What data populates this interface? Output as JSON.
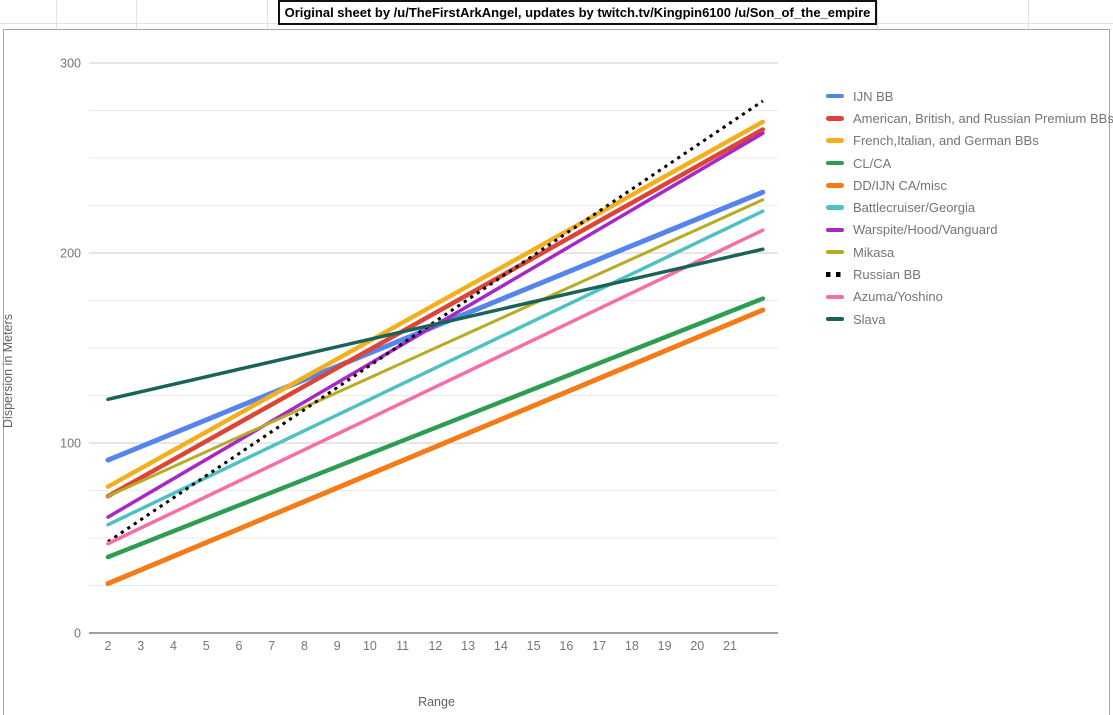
{
  "spreadsheet": {
    "title_cell": "Original sheet by /u/TheFirstArkAngel, updates by twitch.tv/Kingpin6100 /u/Son_of_the_empire"
  },
  "colors": {
    "grid_major": "#cccccc",
    "grid_minor": "#ebebeb",
    "axis_baseline": "#424242",
    "tick_label": "#757575",
    "axis_title": "#616161",
    "cell_border": "#e1e1e1",
    "chart_border": "#a6a6a6"
  },
  "chart_data": {
    "type": "line",
    "title": "",
    "x_axis": {
      "label": "Range",
      "ticks": [
        2,
        3,
        4,
        5,
        6,
        7,
        8,
        9,
        10,
        11,
        12,
        13,
        14,
        15,
        16,
        17,
        18,
        19,
        20,
        21
      ],
      "min": 2,
      "max": 22
    },
    "y_axis": {
      "label": "Dispersion in Meters",
      "ticks": [
        0,
        100,
        200,
        300
      ],
      "min": 0,
      "max": 300,
      "minor_gridline_step": 25
    },
    "grid": "horizontal-only",
    "legend_position": "right",
    "series": [
      {
        "name": "IJN BB",
        "color": "#5585ec",
        "style": "solid",
        "width": 5,
        "points": [
          [
            2,
            91
          ],
          [
            22,
            232
          ]
        ]
      },
      {
        "name": "American, British, and Russian Premium BBs",
        "color": "#db4437",
        "style": "solid",
        "width": 4.5,
        "points": [
          [
            2,
            72
          ],
          [
            22,
            265
          ]
        ]
      },
      {
        "name": "French,Italian, and German BBs",
        "color": "#f2b01e",
        "style": "solid",
        "width": 4.5,
        "points": [
          [
            2,
            77
          ],
          [
            22,
            269
          ]
        ]
      },
      {
        "name": "CL/CA",
        "color": "#2d9e51",
        "style": "solid",
        "width": 4.5,
        "points": [
          [
            2,
            40
          ],
          [
            22,
            176
          ]
        ]
      },
      {
        "name": "DD/IJN CA/misc",
        "color": "#f57b17",
        "style": "solid",
        "width": 5,
        "points": [
          [
            2,
            26
          ],
          [
            22,
            170
          ]
        ]
      },
      {
        "name": "Battlecruiser/Georgia",
        "color": "#4fc0c4",
        "style": "solid",
        "width": 3.5,
        "points": [
          [
            2,
            57
          ],
          [
            22,
            222
          ]
        ]
      },
      {
        "name": "Warspite/Hood/Vanguard",
        "color": "#a628c8",
        "style": "solid",
        "width": 3.5,
        "points": [
          [
            2,
            61
          ],
          [
            22,
            263
          ]
        ]
      },
      {
        "name": "Mikasa",
        "color": "#b6ac25",
        "style": "solid",
        "width": 3,
        "points": [
          [
            2,
            72
          ],
          [
            22,
            228
          ]
        ]
      },
      {
        "name": "Russian BB",
        "color": "#000000",
        "style": "dotted",
        "width": 3,
        "points": [
          [
            2,
            48
          ],
          [
            22,
            280
          ]
        ]
      },
      {
        "name": "Azuma/Yoshino",
        "color": "#f56ea5",
        "style": "solid",
        "width": 3.5,
        "points": [
          [
            2,
            47
          ],
          [
            22,
            212
          ]
        ]
      },
      {
        "name": "Slava",
        "color": "#1a6457",
        "style": "solid",
        "width": 3.5,
        "points": [
          [
            2,
            123
          ],
          [
            22,
            202
          ]
        ]
      }
    ]
  }
}
